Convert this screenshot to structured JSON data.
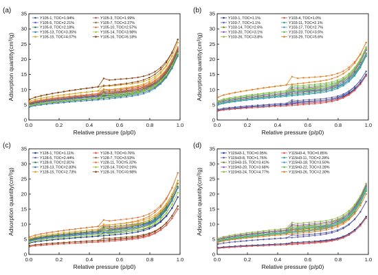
{
  "figure": {
    "background": "#ffffff"
  },
  "chart_data": [
    {
      "panel": "(a)",
      "type": "line",
      "xlabel": "Relative pressure (p/p0)",
      "ylabel": "Adsorption quantity(cm³/g)",
      "xlim": [
        0,
        1.0
      ],
      "ylim": [
        0,
        35
      ],
      "xticks": [
        "0.0",
        "0.2",
        "0.4",
        "0.6",
        "0.8",
        "1.0"
      ],
      "yticks": [
        "0",
        "5",
        "10",
        "15",
        "20",
        "25",
        "30",
        "35"
      ],
      "grid": false,
      "legend_location": "top-left, two columns",
      "series": [
        {
          "name": "Y105-1, TOC=1.94%",
          "color": "#3b5998",
          "y0": 5.2,
          "ymid": 8.1,
          "yend": 22.5,
          "jump": 0.8
        },
        {
          "name": "Y105-3, TOC=1.99%",
          "color": "#c0504d",
          "y0": 5.6,
          "ymid": 8.6,
          "yend": 23.5,
          "jump": 0.9
        },
        {
          "name": "Y105-5, TOC=2.21%",
          "color": "#6a5acd",
          "y0": 5.0,
          "ymid": 7.8,
          "yend": 22.0,
          "jump": 0.7
        },
        {
          "name": "Y105-7, TOC=2.27%",
          "color": "#8b6f47",
          "y0": 5.4,
          "ymid": 8.3,
          "yend": 23.0,
          "jump": 0.8
        },
        {
          "name": "Y105-9, TOC=2.18%",
          "color": "#2e8b57",
          "y0": 4.6,
          "ymid": 7.2,
          "yend": 21.5,
          "jump": 0.6
        },
        {
          "name": "Y105-10, TOC=2.57%",
          "color": "#e07b39",
          "y0": 5.8,
          "ymid": 8.9,
          "yend": 24.0,
          "jump": 0.9
        },
        {
          "name": "Y105-13, TOC=3.35%",
          "color": "#4682b4",
          "y0": 4.3,
          "ymid": 6.8,
          "yend": 21.0,
          "jump": 0.6
        },
        {
          "name": "Y105-14, TOC=3.98%",
          "color": "#9acd32",
          "y0": 4.8,
          "ymid": 7.5,
          "yend": 22.0,
          "jump": 0.7
        },
        {
          "name": "Y105-15, TOC=4.07%",
          "color": "#daa520",
          "y0": 6.2,
          "ymid": 9.8,
          "yend": 25.5,
          "jump": 1.2
        },
        {
          "name": "Y105-16, TOC=6.18%",
          "color": "#8b4513",
          "y0": 6.8,
          "ymid": 11.2,
          "yend": 26.5,
          "jump": 1.8
        }
      ]
    },
    {
      "panel": "(b)",
      "type": "line",
      "xlabel": "Relative pressure (p/p0)",
      "ylabel": "Adsorption quantity(cm³/g)",
      "xlim": [
        0,
        1.0
      ],
      "ylim": [
        0,
        35
      ],
      "xticks": [
        "0.0",
        "0.2",
        "0.4",
        "0.6",
        "0.8",
        "1.0"
      ],
      "yticks": [
        "0",
        "5",
        "10",
        "15",
        "20",
        "25",
        "30",
        "35"
      ],
      "grid": false,
      "legend_location": "top-left, two columns",
      "series": [
        {
          "name": "Y103-1, TOC=1.1%",
          "color": "#1f3a93",
          "y0": 3.2,
          "ymid": 5.2,
          "yend": 15.0,
          "jump": 0.6
        },
        {
          "name": "Y103-4, TOC=1.0%",
          "color": "#d9534f",
          "y0": 3.0,
          "ymid": 4.8,
          "yend": 14.5,
          "jump": 0.5
        },
        {
          "name": "Y103-7, TOC=1.1%",
          "color": "#5b5ea6",
          "y0": 3.5,
          "ymid": 5.6,
          "yend": 16.0,
          "jump": 0.7
        },
        {
          "name": "Y103-11, TOC=2.1%",
          "color": "#2f9e8f",
          "y0": 5.0,
          "ymid": 8.0,
          "yend": 21.0,
          "jump": 1.0
        },
        {
          "name": "Y103-14, TOC=2.6%",
          "color": "#6b8e23",
          "y0": 5.5,
          "ymid": 8.6,
          "yend": 22.0,
          "jump": 1.1
        },
        {
          "name": "Y103-17, TOC=2.7%",
          "color": "#4b9cd3",
          "y0": 5.2,
          "ymid": 8.3,
          "yend": 21.5,
          "jump": 1.0
        },
        {
          "name": "Y103-20, TOC=3.1%",
          "color": "#9b59b6",
          "y0": 5.8,
          "ymid": 9.0,
          "yend": 23.0,
          "jump": 1.2
        },
        {
          "name": "Y103-23, TOC=3.5%",
          "color": "#66bb6a",
          "y0": 6.0,
          "ymid": 9.4,
          "yend": 23.5,
          "jump": 1.2
        },
        {
          "name": "Y103-26, TOC=3.8%",
          "color": "#8fbc3f",
          "y0": 6.3,
          "ymid": 9.8,
          "yend": 24.0,
          "jump": 1.3
        },
        {
          "name": "Y103-29, TOC=5.6%",
          "color": "#e67e22",
          "y0": 7.5,
          "ymid": 11.8,
          "yend": 25.5,
          "jump": 1.8
        }
      ]
    },
    {
      "panel": "(c)",
      "type": "line",
      "xlabel": "Relative pressure (p/p0)",
      "ylabel": "Adsorption quantity(cm³/g)",
      "xlim": [
        0,
        1.0
      ],
      "ylim": [
        0,
        35
      ],
      "xticks": [
        "0.0",
        "0.2",
        "0.4",
        "0.6",
        "0.8",
        "1.0"
      ],
      "yticks": [
        "0",
        "5",
        "10",
        "15",
        "20",
        "25",
        "30",
        "35"
      ],
      "grid": false,
      "legend_location": "top-left, two columns",
      "series": [
        {
          "name": "Y128-1, TOC=1.11%",
          "color": "#1f3a93",
          "y0": 3.8,
          "ymid": 6.2,
          "yend": 19.0,
          "jump": 0.7
        },
        {
          "name": "Y128-3, TOC=0.76%",
          "color": "#d9534f",
          "y0": 2.6,
          "ymid": 4.2,
          "yend": 15.0,
          "jump": 0.4
        },
        {
          "name": "Y128-5, TOC=2.44%",
          "color": "#6a5acd",
          "y0": 4.6,
          "ymid": 7.4,
          "yend": 22.0,
          "jump": 0.9
        },
        {
          "name": "Y128-7, TOC=3.53%",
          "color": "#8b6f47",
          "y0": 5.0,
          "ymid": 8.0,
          "yend": 23.5,
          "jump": 1.0
        },
        {
          "name": "Y128-9, TOC=2.81%",
          "color": "#2e8b57",
          "y0": 4.8,
          "ymid": 7.7,
          "yend": 22.5,
          "jump": 0.9
        },
        {
          "name": "Y128-11, TOC=5.32%",
          "color": "#e07b39",
          "y0": 5.8,
          "ymid": 9.5,
          "yend": 27.0,
          "jump": 1.4
        },
        {
          "name": "Y128-13, TOC=2.83%",
          "color": "#4682b4",
          "y0": 4.4,
          "ymid": 7.1,
          "yend": 22.0,
          "jump": 0.8
        },
        {
          "name": "Y128-14, TOC=2.19%",
          "color": "#9acd32",
          "y0": 4.1,
          "ymid": 6.7,
          "yend": 20.5,
          "jump": 0.8
        },
        {
          "name": "Y128-15, TOC=2.73%",
          "color": "#daa520",
          "y0": 5.3,
          "ymid": 8.5,
          "yend": 24.5,
          "jump": 1.1
        },
        {
          "name": "Y128-16, TOC=0.98%",
          "color": "#8b4513",
          "y0": 2.9,
          "ymid": 4.7,
          "yend": 16.0,
          "jump": 0.5
        }
      ]
    },
    {
      "panel": "(d)",
      "type": "line",
      "xlabel": "Relative pressure (p/p0)",
      "ylabel": "Adsorption quantity(cm³/g)",
      "xlim": [
        0,
        1.0
      ],
      "ylim": [
        0,
        35
      ],
      "xticks": [
        "0.0",
        "0.2",
        "0.4",
        "0.6",
        "0.8",
        "1.0"
      ],
      "yticks": [
        "0",
        "5",
        "10",
        "15",
        "20",
        "25",
        "30",
        "35"
      ],
      "grid": false,
      "legend_location": "top-left, two columns",
      "series": [
        {
          "name": "Y115H3-1, TOC=0.95%",
          "color": "#1f3a93",
          "y0": 2.2,
          "ymid": 3.6,
          "yend": 12.5,
          "jump": 0.3
        },
        {
          "name": "Y115H3-4, TOC=0.85%",
          "color": "#d9534f",
          "y0": 2.0,
          "ymid": 3.3,
          "yend": 12.0,
          "jump": 0.3
        },
        {
          "name": "Y115H3-8, TOC=1.76%",
          "color": "#5b5ea6",
          "y0": 3.4,
          "ymid": 5.6,
          "yend": 17.5,
          "jump": 0.6
        },
        {
          "name": "Y115H3-11, TOC=2.28%",
          "color": "#2f9e8f",
          "y0": 4.2,
          "ymid": 7.2,
          "yend": 21.0,
          "jump": 0.9
        },
        {
          "name": "Y115H3-15, TOC=3.41%",
          "color": "#6b8e23",
          "y0": 4.8,
          "ymid": 8.0,
          "yend": 22.5,
          "jump": 1.1
        },
        {
          "name": "Y115H3-18, TOC=3.50%",
          "color": "#4b9cd3",
          "y0": 4.5,
          "ymid": 7.6,
          "yend": 22.0,
          "jump": 1.0
        },
        {
          "name": "Y115H3-20, TOC=3.68%",
          "color": "#9b59b6",
          "y0": 5.0,
          "ymid": 8.3,
          "yend": 23.0,
          "jump": 1.2
        },
        {
          "name": "Y115H3-22, TOC=3.28%",
          "color": "#66bb6a",
          "y0": 4.4,
          "ymid": 7.4,
          "yend": 21.5,
          "jump": 1.0
        },
        {
          "name": "Y115H3-24, TOC=4.77%",
          "color": "#8fbc3f",
          "y0": 5.3,
          "ymid": 8.8,
          "yend": 23.5,
          "jump": 1.3
        },
        {
          "name": "Y115H3-26, TOC=2.30%",
          "color": "#e67e22",
          "y0": 4.0,
          "ymid": 6.8,
          "yend": 20.0,
          "jump": 0.9
        }
      ]
    }
  ]
}
